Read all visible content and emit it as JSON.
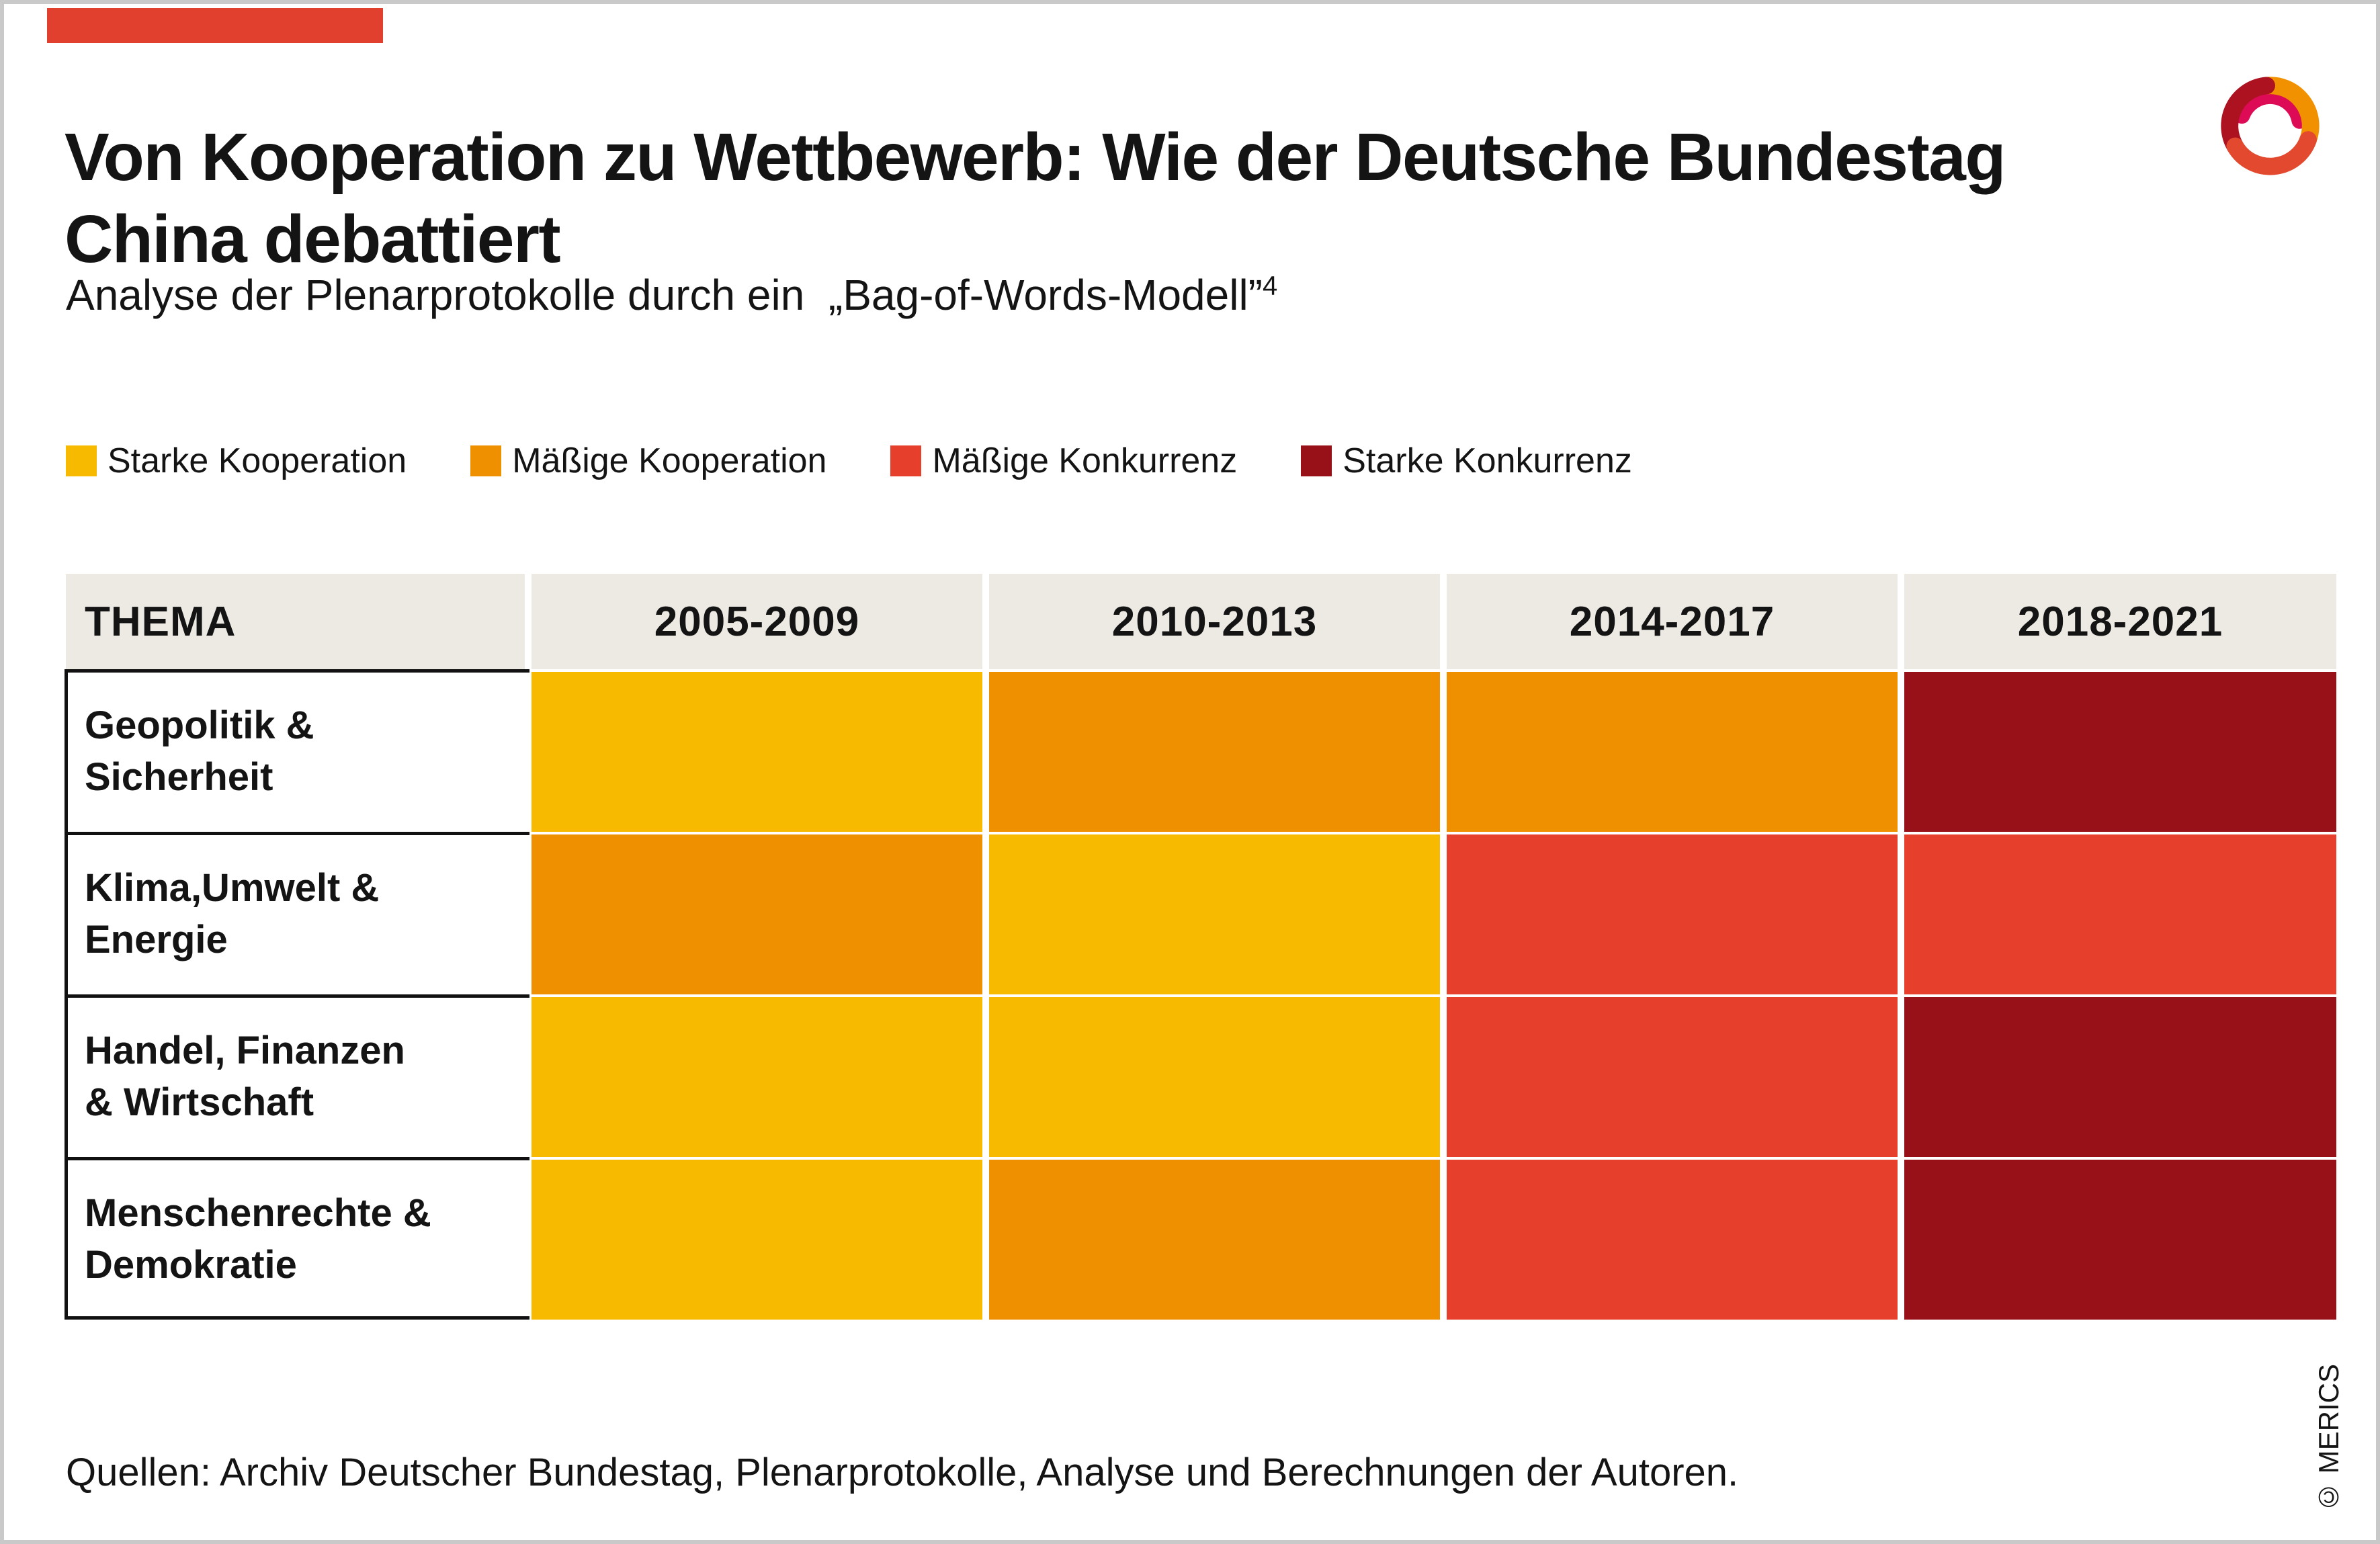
{
  "title": {
    "line1": "Von Kooperation zu Wettbewerb: Wie der Deutsche Bundestag",
    "line2": "China debattiert"
  },
  "subtitle": {
    "text": "Analyse der Plenarprotokolle durch ein  „Bag-of-Words-Modell”",
    "footnote": "4"
  },
  "legend": {
    "items": [
      "Starke Kooperation",
      "Mäßige Kooperation",
      "Mäßige Konkurrenz",
      "Starke Konkurrenz"
    ]
  },
  "palette": {
    "Starke Kooperation": "#F8BA00",
    "Mäßige Kooperation": "#EF9000",
    "Mäßige Konkurrenz": "#E6402C",
    "Starke Konkurrenz": "#991118"
  },
  "chart_data": {
    "type": "heatmap",
    "columns": [
      "THEMA",
      "2005-2009",
      "2010-2013",
      "2014-2017",
      "2018-2021"
    ],
    "rows": [
      {
        "label": "Geopolitik &\nSicherheit",
        "values": [
          "Starke Kooperation",
          "Mäßige Kooperation",
          "Mäßige Kooperation",
          "Starke Konkurrenz"
        ]
      },
      {
        "label": "Klima,Umwelt &\nEnergie",
        "values": [
          "Mäßige Kooperation",
          "Starke Kooperation",
          "Mäßige Konkurrenz",
          "Mäßige Konkurrenz"
        ]
      },
      {
        "label": "Handel, Finanzen\n& Wirtschaft",
        "values": [
          "Starke Kooperation",
          "Starke Kooperation",
          "Mäßige Konkurrenz",
          "Starke Konkurrenz"
        ]
      },
      {
        "label": "Menschenrechte &\nDemokratie",
        "values": [
          "Starke Kooperation",
          "Mäßige Kooperation",
          "Mäßige Konkurrenz",
          "Starke Konkurrenz"
        ]
      }
    ],
    "legend_position": "top",
    "grid": false
  },
  "footer": {
    "source": "Quellen: Archiv Deutscher Bundestag, Plenarprotokolle, Analyse und Berechnungen der Autoren.",
    "copyright": "© MERICS"
  },
  "brand": {
    "accent_red": "#E2402E",
    "header_bg": "#EDE9E3",
    "frame_gray": "#C9C9C9"
  }
}
